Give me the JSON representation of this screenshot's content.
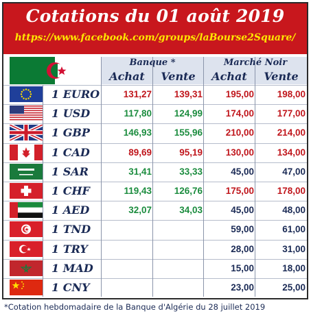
{
  "header": {
    "title": "Cotations du 01 août 2019",
    "url": "https://www.facebook.com/groups/laBourse2Square/"
  },
  "table": {
    "group_bank": "Banque *",
    "group_black": "Marché Noir",
    "buy": "Achat",
    "sell": "Vente",
    "rows": [
      {
        "flag": "eu-flag-icon",
        "label": "1 EURO",
        "bank_buy": "131,27",
        "bank_sell": "139,31",
        "bank_color": "red",
        "mn_buy": "195,00",
        "mn_sell": "198,00",
        "mn_color": "red"
      },
      {
        "flag": "us-flag-icon",
        "label": "1 USD",
        "bank_buy": "117,80",
        "bank_sell": "124,99",
        "bank_color": "green",
        "mn_buy": "174,00",
        "mn_sell": "177,00",
        "mn_color": "red"
      },
      {
        "flag": "uk-flag-icon",
        "label": "1 GBP",
        "bank_buy": "146,93",
        "bank_sell": "155,96",
        "bank_color": "green",
        "mn_buy": "210,00",
        "mn_sell": "214,00",
        "mn_color": "red"
      },
      {
        "flag": "ca-flag-icon",
        "label": "1 CAD",
        "bank_buy": "89,69",
        "bank_sell": "95,19",
        "bank_color": "red",
        "mn_buy": "130,00",
        "mn_sell": "134,00",
        "mn_color": "red"
      },
      {
        "flag": "sa-flag-icon",
        "label": "1 SAR",
        "bank_buy": "31,41",
        "bank_sell": "33,33",
        "bank_color": "green",
        "mn_buy": "45,00",
        "mn_sell": "47,00",
        "mn_color": "navy"
      },
      {
        "flag": "ch-flag-icon",
        "label": "1 CHF",
        "bank_buy": "119,43",
        "bank_sell": "126,76",
        "bank_color": "green",
        "mn_buy": "175,00",
        "mn_sell": "178,00",
        "mn_color": "red"
      },
      {
        "flag": "ae-flag-icon",
        "label": "1 AED",
        "bank_buy": "32,07",
        "bank_sell": "34,03",
        "bank_color": "green",
        "mn_buy": "45,00",
        "mn_sell": "48,00",
        "mn_color": "navy"
      },
      {
        "flag": "tn-flag-icon",
        "label": "1 TND",
        "bank_buy": "",
        "bank_sell": "",
        "bank_color": "navy",
        "mn_buy": "59,00",
        "mn_sell": "61,00",
        "mn_color": "navy"
      },
      {
        "flag": "tr-flag-icon",
        "label": "1 TRY",
        "bank_buy": "",
        "bank_sell": "",
        "bank_color": "navy",
        "mn_buy": "28,00",
        "mn_sell": "31,00",
        "mn_color": "navy"
      },
      {
        "flag": "ma-flag-icon",
        "label": "1 MAD",
        "bank_buy": "",
        "bank_sell": "",
        "bank_color": "navy",
        "mn_buy": "15,00",
        "mn_sell": "18,00",
        "mn_color": "navy"
      },
      {
        "flag": "cn-flag-icon",
        "label": "1 CNY",
        "bank_buy": "",
        "bank_sell": "",
        "bank_color": "navy",
        "mn_buy": "23,00",
        "mn_sell": "25,00",
        "mn_color": "navy"
      }
    ]
  },
  "footer": {
    "note": "*Cotation hebdomadaire de la Banque d'Algérie du 28 juillet 2019"
  },
  "colors": {
    "banner": "#c8171d",
    "url": "#ffe600",
    "green": "#1b8c3e",
    "red": "#c0161c",
    "navy": "#1a2a55"
  }
}
